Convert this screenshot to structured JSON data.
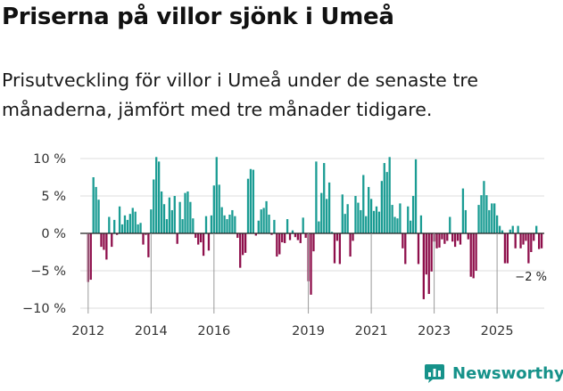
{
  "header": {
    "title": "Priserna på villor sjönk i Umeå",
    "subtitle": "Prisutveckling för villor i Umeå under de senaste tre månaderna, jämfört med tre månader tidigare."
  },
  "brand": {
    "name": "Newsworthy"
  },
  "colors": {
    "positive": "#1a9c93",
    "negative": "#8e0f4b",
    "grid": "#dddddd",
    "baseline": "#222222",
    "brand": "#16928a"
  },
  "chart_data": {
    "type": "bar",
    "title": "Priserna på villor sjönk i Umeå",
    "subtitle": "Prisutveckling för villor i Umeå under de senaste tre månaderna, jämfört med tre månader tidigare.",
    "xlabel": "",
    "ylabel": "",
    "ylim": [
      -10,
      10
    ],
    "yticks": [
      -10,
      -5,
      0,
      5,
      10
    ],
    "ytick_labels": [
      "−10 %",
      "−5 %",
      "0 %",
      "5 %",
      "10 %"
    ],
    "xlim": [
      2011.75,
      2026.5
    ],
    "xticks": [
      2012,
      2014,
      2016,
      2019,
      2021,
      2023,
      2025
    ],
    "xtick_labels": [
      "2012",
      "2014",
      "2016",
      "2019",
      "2021",
      "2023",
      "2025"
    ],
    "grid": true,
    "start": "2012-01",
    "frequency": "monthly",
    "values": [
      -6.5,
      -6.2,
      7.5,
      6.2,
      4.5,
      -1.8,
      -2.2,
      -3.5,
      2.2,
      -1.8,
      1.8,
      -0.2,
      3.6,
      1.2,
      2.4,
      1.8,
      2.6,
      3.4,
      2.9,
      1.2,
      1.4,
      -1.5,
      -0.2,
      -3.2,
      3.2,
      7.2,
      10.2,
      9.6,
      5.6,
      3.9,
      1.9,
      4.8,
      3.1,
      5.0,
      -1.4,
      4.2,
      1.9,
      5.4,
      5.6,
      4.2,
      2.0,
      -0.6,
      -1.5,
      -1.2,
      -3.0,
      2.3,
      -2.3,
      2.4,
      6.4,
      10.2,
      6.5,
      3.5,
      2.4,
      1.9,
      2.5,
      3.1,
      2.3,
      -0.6,
      -4.6,
      -2.9,
      -2.6,
      7.3,
      8.6,
      8.5,
      -0.3,
      1.7,
      3.2,
      3.4,
      4.3,
      2.5,
      -0.2,
      1.8,
      -3.1,
      -2.8,
      -1.2,
      -1.3,
      1.9,
      -0.9,
      0.4,
      -0.5,
      -0.9,
      -1.3,
      2.1,
      -0.6,
      -6.4,
      -8.2,
      -2.4,
      9.6,
      1.6,
      5.4,
      9.4,
      4.6,
      6.8,
      0.2,
      -4.0,
      -1.0,
      -4.1,
      5.2,
      2.6,
      3.9,
      -3.1,
      -1.0,
      5.0,
      4.1,
      3.1,
      7.8,
      2.3,
      6.2,
      4.6,
      3.0,
      3.6,
      2.9,
      7.0,
      9.4,
      8.2,
      10.2,
      3.8,
      2.2,
      2.0,
      4.0,
      -2.0,
      -4.1,
      3.6,
      1.7,
      5.0,
      9.9,
      -4.1,
      2.4,
      -8.8,
      -5.5,
      -8.1,
      -5.1,
      -1.1,
      -2.0,
      -1.9,
      -0.8,
      -1.4,
      -1.0,
      2.2,
      -1.1,
      -1.8,
      -1.0,
      -1.5,
      6.0,
      3.1,
      -0.8,
      -5.8,
      -6.0,
      -5.0,
      3.8,
      5.1,
      7.0,
      5.1,
      3.1,
      4.0,
      4.0,
      2.4,
      1.0,
      0.4,
      -4.0,
      -4.0,
      0.5,
      1.0,
      -2.0,
      1.0,
      -2.0,
      -1.5,
      -1.0,
      -4.0,
      -2.5,
      -1.0,
      1.0,
      -2.1,
      -2.0
    ],
    "annotations": [
      {
        "label": "−2 %",
        "value": -2,
        "date": "2026-02"
      }
    ]
  }
}
